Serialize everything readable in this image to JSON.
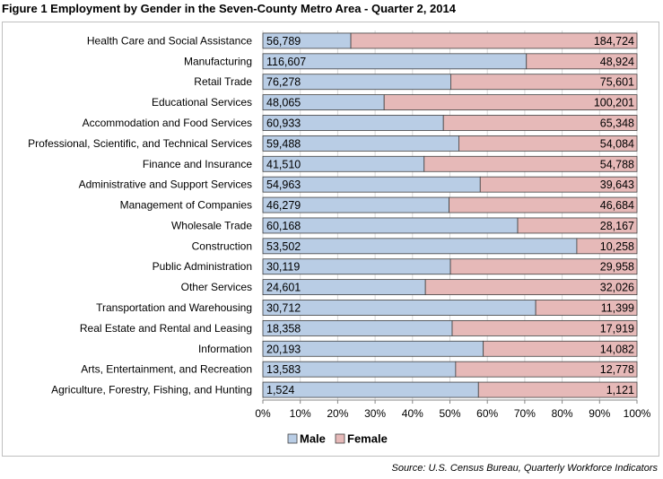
{
  "title": "Figure 1 Employment by Gender in the Seven-County Metro Area - Quarter 2, 2014",
  "source": "Source:  U.S. Census Bureau, Quarterly Workforce Indicators",
  "colors": {
    "male": "#b9cde5",
    "female": "#e6b9b8",
    "bar_border": "#404040",
    "grid": "#d9d9d9"
  },
  "chart_data": {
    "type": "bar",
    "orientation": "horizontal",
    "stacked": "percent",
    "categories": [
      "Health Care and Social Assistance",
      "Manufacturing",
      "Retail Trade",
      "Educational Services",
      "Accommodation and Food Services",
      "Professional, Scientific, and Technical Services",
      "Finance and Insurance",
      "Administrative and Support Services",
      "Management of Companies",
      "Wholesale Trade",
      "Construction",
      "Public Administration",
      "Other Services",
      "Transportation and Warehousing",
      "Real Estate and Rental and Leasing",
      "Information",
      "Arts, Entertainment, and Recreation",
      "Agriculture, Forestry, Fishing, and Hunting"
    ],
    "series": [
      {
        "name": "Male",
        "values": [
          56789,
          116607,
          76278,
          48065,
          60933,
          59488,
          41510,
          54963,
          46279,
          60168,
          53502,
          30119,
          24601,
          30712,
          18358,
          20193,
          13583,
          1524
        ],
        "labels": [
          "56,789",
          "116,607",
          "76,278",
          "48,065",
          "60,933",
          "59,488",
          "41,510",
          "54,963",
          "46,279",
          "60,168",
          "53,502",
          "30,119",
          "24,601",
          "30,712",
          "18,358",
          "20,193",
          "13,583",
          "1,524"
        ]
      },
      {
        "name": "Female",
        "values": [
          184724,
          48924,
          75601,
          100201,
          65348,
          54084,
          54788,
          39643,
          46684,
          28167,
          10258,
          29958,
          32026,
          11399,
          17919,
          14082,
          12778,
          1121
        ],
        "labels": [
          "184,724",
          "48,924",
          "75,601",
          "100,201",
          "65,348",
          "54,084",
          "54,788",
          "39,643",
          "46,684",
          "28,167",
          "10,258",
          "29,958",
          "32,026",
          "11,399",
          "17,919",
          "14,082",
          "12,778",
          "1,121"
        ]
      }
    ],
    "xticks": [
      "0%",
      "10%",
      "20%",
      "30%",
      "40%",
      "50%",
      "60%",
      "70%",
      "80%",
      "90%",
      "100%"
    ],
    "xlim": [
      0,
      1
    ],
    "grid": true,
    "legend_position": "bottom"
  }
}
